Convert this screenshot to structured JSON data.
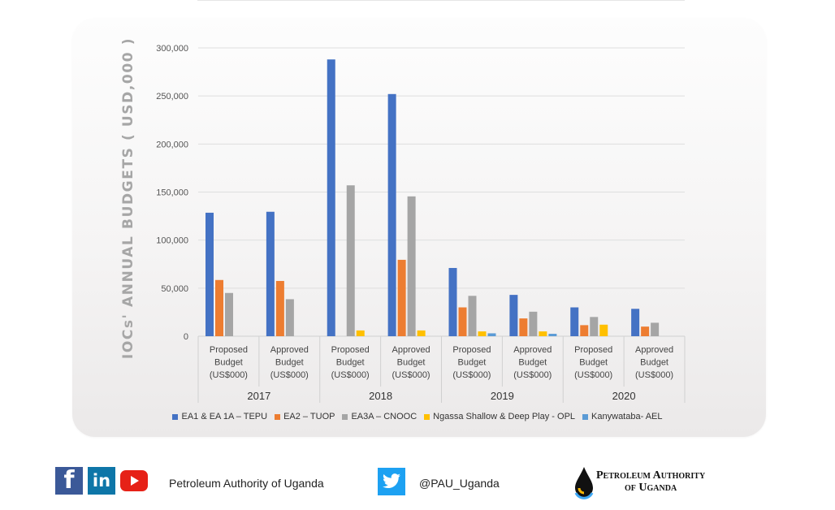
{
  "chart_data": {
    "type": "bar",
    "ylabel": "IOCs' ANNUAL BUDGETS ( USD,000 )",
    "ylim": [
      0,
      300000
    ],
    "yticks": [
      0,
      50000,
      100000,
      150000,
      200000,
      250000,
      300000
    ],
    "ytick_labels": [
      "0",
      "50,000",
      "100,000",
      "150,000",
      "200,000",
      "250,000",
      "300,000"
    ],
    "grid": true,
    "legend_position": "bottom",
    "groups": [
      "2017",
      "2018",
      "2019",
      "2020"
    ],
    "categories": [
      [
        "Proposed",
        "Budget",
        "(US$000)"
      ],
      [
        "Approved",
        "Budget",
        "(US$000)"
      ],
      [
        "Proposed",
        "Budget",
        "(US$000)"
      ],
      [
        "Approved",
        "Budget",
        "(US$000)"
      ],
      [
        "Proposed",
        "Budget",
        "(US$000)"
      ],
      [
        "Approved",
        "Budget",
        "(US$000)"
      ],
      [
        "Proposed",
        "Budget",
        "(US$000)"
      ],
      [
        "Approved",
        "Budget",
        "(US$000)"
      ]
    ],
    "series": [
      {
        "name": "EA1 & EA 1A – TEPU",
        "color": "#4472c4",
        "values": [
          128500,
          129500,
          288000,
          252000,
          71000,
          43000,
          30000,
          28500
        ]
      },
      {
        "name": "EA2 – TUOP",
        "color": "#ed7d31",
        "values": [
          58500,
          57500,
          0,
          79500,
          30000,
          18500,
          11500,
          10000
        ]
      },
      {
        "name": "EA3A – CNOOC",
        "color": "#a5a5a5",
        "values": [
          45000,
          38500,
          157000,
          145500,
          42000,
          25500,
          20000,
          14000
        ]
      },
      {
        "name": "Ngassa Shallow & Deep Play - OPL",
        "color": "#ffc000",
        "values": [
          0,
          0,
          6000,
          6000,
          5000,
          5000,
          12000,
          0
        ]
      },
      {
        "name": "Kanywataba- AEL",
        "color": "#5b9bd5",
        "values": [
          0,
          0,
          0,
          0,
          3000,
          2500,
          0,
          0
        ]
      }
    ]
  },
  "footer": {
    "org_name": "Petroleum Authority of Uganda",
    "twitter_handle": "@PAU_Uganda",
    "logo_line1": "Petroleum Authority",
    "logo_line2": "of Uganda",
    "facebook_glyph": "f",
    "linkedin_glyph": "in"
  }
}
